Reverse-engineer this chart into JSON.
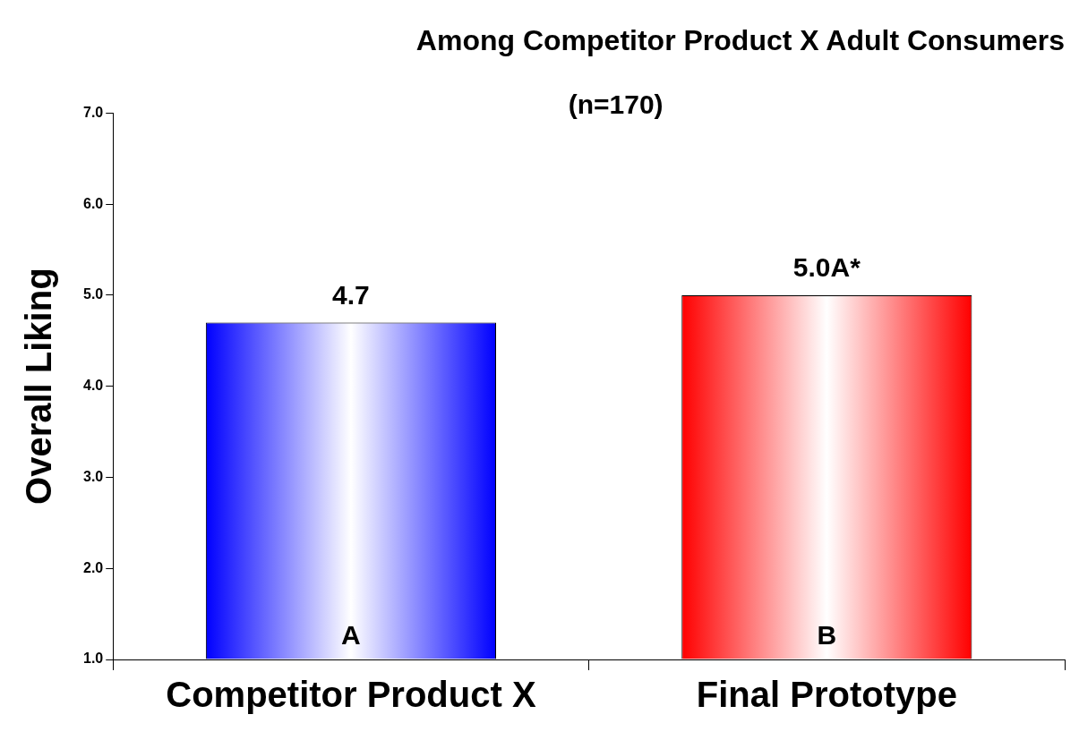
{
  "chart_data": {
    "type": "bar",
    "title": "Among Competitor Product X Adult Consumers",
    "subtitle": "(n=170)",
    "ylabel": "Overall Liking",
    "categories": [
      "Competitor Product X",
      "Final Prototype"
    ],
    "values": [
      4.7,
      5.0
    ],
    "colors": [
      "#0000ff",
      "#ff0000"
    ],
    "value_labels": [
      "4.7",
      "5.0A*"
    ],
    "annotations": [
      "A",
      "B"
    ],
    "ylim": [
      1,
      7
    ],
    "yticks": [
      {
        "value": 1,
        "label": "1.0"
      },
      {
        "value": 2,
        "label": "2.0"
      },
      {
        "value": 3,
        "label": "3.0"
      },
      {
        "value": 4,
        "label": "4.0"
      },
      {
        "value": 5,
        "label": "5.0"
      },
      {
        "value": 6,
        "label": "6.0"
      },
      {
        "value": 7,
        "label": "7.0"
      }
    ],
    "grid": false,
    "legend": false
  }
}
